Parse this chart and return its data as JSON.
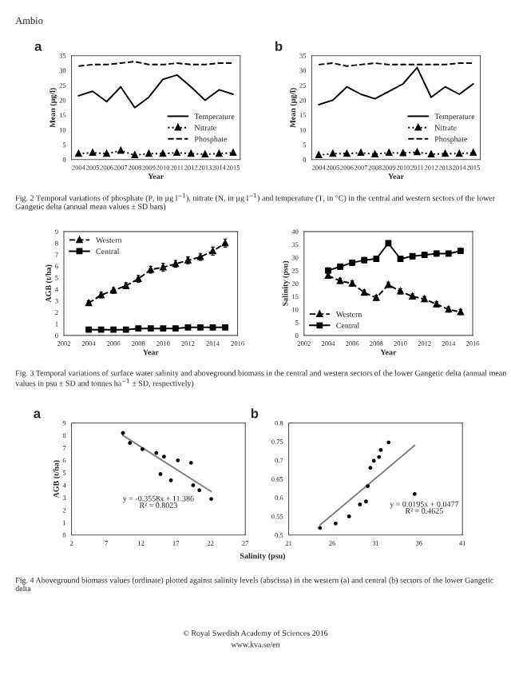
{
  "chart_data": [
    {
      "type": "line",
      "title": "a",
      "xlabel": "Year",
      "ylabel": "Mean (µg/l)",
      "categories": [
        "2004",
        "2005",
        "2006",
        "2007",
        "2008",
        "2009",
        "2010",
        "2011",
        "2012",
        "2013",
        "2014",
        "2015"
      ],
      "ylim": [
        0,
        35
      ],
      "yticks": [
        0,
        5,
        10,
        15,
        20,
        25,
        30,
        35
      ],
      "legend": "center right",
      "grid": false,
      "series": [
        {
          "name": "Temperature",
          "color": "#000000",
          "line_style": "solid",
          "marker": "none",
          "values": [
            21.5,
            23,
            19.5,
            24.5,
            17.5,
            21,
            27,
            28.5,
            24.5,
            20,
            23.5,
            22
          ]
        },
        {
          "name": "Nitrate",
          "color": "#000000",
          "line_style": "dotted",
          "marker": "triangle",
          "values": [
            2,
            2.3,
            2,
            3,
            1.5,
            2,
            2,
            2.3,
            2,
            1.8,
            2,
            2.3
          ]
        },
        {
          "name": "Phosphate",
          "color": "#000000",
          "line_style": "dashed",
          "marker": "none",
          "values": [
            31.5,
            32,
            32,
            32.5,
            33,
            32,
            32,
            32.5,
            32,
            32,
            32.5,
            32.5
          ]
        }
      ],
      "annotations": [
        "Ambio",
        "Fig. 2 Temporal variations of phosphate (P, in µg l$^{−1}$), nitrate (N, in µg l$^{−1}$) and temperature (T, in °C) in the central and western sectors of the lower Gangetic delta (annual mean values ± SD bars)"
      ]
    },
    {
      "type": "line",
      "title": "b",
      "xlabel": "Year",
      "ylabel": "Mean (µg/l)",
      "categories": [
        "2004",
        "2005",
        "2006",
        "2007",
        "2008",
        "2009",
        "2010",
        "2011",
        "2012",
        "2013",
        "2014",
        "2015"
      ],
      "ylim": [
        0,
        35
      ],
      "yticks": [
        0,
        5,
        10,
        15,
        20,
        25,
        30,
        35
      ],
      "legend": "center right",
      "grid": false,
      "series": [
        {
          "name": "Temperature",
          "color": "#000000",
          "line_style": "solid",
          "marker": "none",
          "values": [
            18.5,
            20,
            24.5,
            22,
            20.5,
            23,
            25.5,
            31,
            21,
            24.5,
            22,
            25.5
          ]
        },
        {
          "name": "Nitrate",
          "color": "#000000",
          "line_style": "dotted",
          "marker": "triangle",
          "values": [
            1.5,
            2,
            2,
            2.3,
            1.8,
            2.3,
            2.2,
            2.5,
            1.8,
            2,
            2,
            2.3
          ]
        },
        {
          "name": "Phosphate",
          "color": "#000000",
          "line_style": "dashed",
          "marker": "none",
          "values": [
            32,
            32.5,
            31.5,
            32,
            32.5,
            32,
            32,
            32,
            32,
            32,
            32.5,
            32.5
          ]
        }
      ]
    },
    {
      "type": "line",
      "xlabel": "Year",
      "ylabel": "AGB (t/ha)",
      "x": [
        2004,
        2005,
        2006,
        2007,
        2008,
        2009,
        2010,
        2011,
        2012,
        2013,
        2014,
        2015
      ],
      "xlim": [
        2002,
        2016
      ],
      "xticks": [
        2002,
        2004,
        2006,
        2008,
        2010,
        2012,
        2014,
        2016
      ],
      "ylim": [
        0,
        9
      ],
      "yticks": [
        0,
        1,
        2,
        3,
        4,
        5,
        6,
        7,
        8,
        9
      ],
      "legend": "top left",
      "grid": false,
      "series": [
        {
          "name": "Western",
          "color": "#000000",
          "line_style": "dashed",
          "marker": "triangle",
          "values": [
            2.8,
            3.5,
            3.9,
            4.3,
            4.9,
            5.7,
            5.9,
            6.2,
            6.5,
            6.8,
            7.3,
            8.0
          ],
          "errors": [
            0.2,
            0.25,
            0.25,
            0.25,
            0.3,
            0.3,
            0.35,
            0.3,
            0.3,
            0.3,
            0.35,
            0.35
          ]
        },
        {
          "name": "Central",
          "color": "#000000",
          "line_style": "solid",
          "marker": "square",
          "values": [
            0.5,
            0.5,
            0.5,
            0.5,
            0.6,
            0.6,
            0.6,
            0.6,
            0.7,
            0.7,
            0.7,
            0.7
          ]
        }
      ],
      "annotations": [
        "Fig. 3 Temporal variations of surface water salinity and aboveground biomass in the central and western sectors of the lower Gangetic delta (annual mean values in psu ± SD and tonnes ha$^{−1}$ ± SD, respectively)"
      ]
    },
    {
      "type": "line",
      "xlabel": "Year",
      "ylabel": "Salinity (psu)",
      "x": [
        2004,
        2005,
        2006,
        2007,
        2008,
        2009,
        2010,
        2011,
        2012,
        2013,
        2014,
        2015
      ],
      "xlim": [
        2002,
        2016
      ],
      "xticks": [
        2002,
        2004,
        2006,
        2008,
        2010,
        2012,
        2014,
        2016
      ],
      "ylim": [
        0,
        40
      ],
      "yticks": [
        0,
        5,
        10,
        15,
        20,
        25,
        30,
        35,
        40
      ],
      "legend": "bottom left",
      "grid": false,
      "series": [
        {
          "name": "Western",
          "color": "#000000",
          "line_style": "dashed",
          "marker": "triangle",
          "values": [
            23,
            21,
            20,
            16.5,
            14.5,
            19.5,
            17,
            15,
            14,
            12,
            10,
            9
          ],
          "errors": [
            1,
            1,
            1,
            1,
            1,
            1,
            1,
            1,
            1,
            1,
            1,
            1
          ]
        },
        {
          "name": "Central",
          "color": "#000000",
          "line_style": "solid",
          "marker": "square",
          "values": [
            25,
            26.5,
            28,
            29,
            29.5,
            35.5,
            29.5,
            30.5,
            31,
            31.5,
            31.5,
            32.5
          ],
          "errors": [
            1,
            1,
            1,
            1,
            1,
            1,
            1,
            1,
            1,
            1,
            1,
            1
          ]
        }
      ]
    },
    {
      "type": "scatter",
      "title": "a",
      "xlabel": "Salinity (psu)",
      "ylabel": "AGB (t/ha)",
      "xlim": [
        2,
        27
      ],
      "xticks": [
        2,
        7,
        12,
        17,
        22,
        27
      ],
      "ylim": [
        0,
        9
      ],
      "yticks": [
        0,
        1,
        2,
        3,
        4,
        5,
        6,
        7,
        8,
        9
      ],
      "grid": false,
      "series": [
        {
          "type": "scatter",
          "color": "#000000",
          "marker": "circle",
          "x": [
            9.4,
            10.4,
            12.2,
            14.2,
            15.3,
            14.8,
            16.3,
            17.3,
            19.2,
            19.5,
            20.4,
            22.1
          ],
          "values": [
            8.2,
            7.4,
            6.9,
            6.6,
            6.3,
            4.9,
            4.4,
            6.0,
            5.8,
            4.0,
            3.6,
            2.9
          ]
        },
        {
          "type": "line",
          "color": "#808080",
          "line_style": "solid",
          "marker": "none",
          "x": [
            9.4,
            22.1
          ],
          "values": [
            8.0,
            3.5
          ]
        }
      ],
      "annotations": [
        "y = -0.3558x + 11.386",
        "R² = 0.8023",
        "Fig. 4 Aboveground biomass values (ordinate) plotted against salinity levels (abscissa) in the western (a) and central (b) sectors of the lower Gangetic delta"
      ]
    },
    {
      "type": "scatter",
      "title": "b",
      "xlim": [
        21,
        41
      ],
      "xticks": [
        21,
        26,
        31,
        36,
        41
      ],
      "ylim": [
        0.5,
        0.8
      ],
      "yticks": [
        {
          "value": 0.5,
          "label": "0.5"
        },
        {
          "value": 0.55,
          "label": "0.55"
        },
        {
          "value": 0.6,
          "label": "0.6"
        },
        {
          "value": 0.65,
          "label": "0.65"
        },
        {
          "value": 0.7,
          "label": "0.7"
        },
        {
          "value": 0.75,
          "label": "0.75"
        },
        {
          "value": 0.8,
          "label": "0.8"
        }
      ],
      "grid": false,
      "series": [
        {
          "type": "scatter",
          "color": "#000000",
          "marker": "circle",
          "x": [
            24.6,
            26.4,
            27.95,
            29.2,
            29.9,
            30.1,
            30.4,
            30.8,
            31.4,
            31.6,
            32.5,
            35.5
          ],
          "values": [
            0.519,
            0.531,
            0.55,
            0.582,
            0.59,
            0.631,
            0.68,
            0.699,
            0.709,
            0.728,
            0.748,
            0.61
          ]
        },
        {
          "type": "line",
          "color": "#808080",
          "line_style": "solid",
          "marker": "none",
          "x": [
            24.6,
            35.5
          ],
          "values": [
            0.527,
            0.74
          ]
        }
      ],
      "annotations": [
        "y = 0.0195x + 0.0477",
        "R² = 0.4625",
        "© Royal Swedish Academy of Sciences 2016",
        "www.kva.se/en"
      ]
    }
  ]
}
